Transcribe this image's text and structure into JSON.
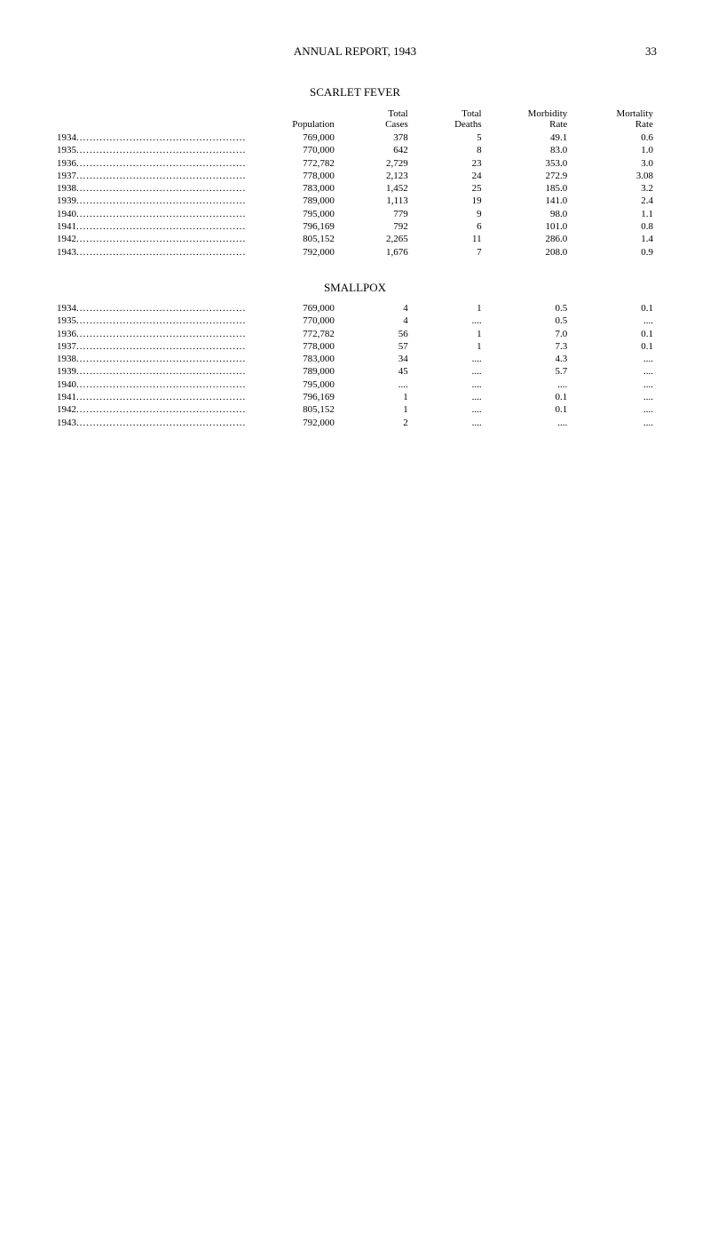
{
  "header": {
    "title": "ANNUAL REPORT, 1943",
    "page_number": "33"
  },
  "tables": [
    {
      "title": "SCARLET FEVER",
      "columns": [
        "",
        "Population",
        "Total Cases",
        "Total Deaths",
        "Morbidity Rate",
        "Mortality Rate"
      ],
      "rows": [
        {
          "year": "1934",
          "population": "769,000",
          "cases": "378",
          "deaths": "5",
          "morbidity": "49.1",
          "mortality": "0.6"
        },
        {
          "year": "1935",
          "population": "770,000",
          "cases": "642",
          "deaths": "8",
          "morbidity": "83.0",
          "mortality": "1.0"
        },
        {
          "year": "1936",
          "population": "772,782",
          "cases": "2,729",
          "deaths": "23",
          "morbidity": "353.0",
          "mortality": "3.0"
        },
        {
          "year": "1937",
          "population": "778,000",
          "cases": "2,123",
          "deaths": "24",
          "morbidity": "272.9",
          "mortality": "3.08"
        },
        {
          "year": "1938",
          "population": "783,000",
          "cases": "1,452",
          "deaths": "25",
          "morbidity": "185.0",
          "mortality": "3.2"
        },
        {
          "year": "1939",
          "population": "789,000",
          "cases": "1,113",
          "deaths": "19",
          "morbidity": "141.0",
          "mortality": "2.4"
        },
        {
          "year": "1940",
          "population": "795,000",
          "cases": "779",
          "deaths": "9",
          "morbidity": "98.0",
          "mortality": "1.1"
        },
        {
          "year": "1941",
          "population": "796,169",
          "cases": "792",
          "deaths": "6",
          "morbidity": "101.0",
          "mortality": "0.8"
        },
        {
          "year": "1942",
          "population": "805,152",
          "cases": "2,265",
          "deaths": "11",
          "morbidity": "286.0",
          "mortality": "1.4"
        },
        {
          "year": "1943",
          "population": "792,000",
          "cases": "1,676",
          "deaths": "7",
          "morbidity": "208.0",
          "mortality": "0.9"
        }
      ]
    },
    {
      "title": "SMALLPOX",
      "columns": [
        "",
        "Population",
        "Total Cases",
        "Total Deaths",
        "Morbidity Rate",
        "Mortality Rate"
      ],
      "rows": [
        {
          "year": "1934",
          "population": "769,000",
          "cases": "4",
          "deaths": "1",
          "morbidity": "0.5",
          "mortality": "0.1"
        },
        {
          "year": "1935",
          "population": "770,000",
          "cases": "4",
          "deaths": "....",
          "morbidity": "0.5",
          "mortality": "...."
        },
        {
          "year": "1936",
          "population": "772,782",
          "cases": "56",
          "deaths": "1",
          "morbidity": "7.0",
          "mortality": "0.1"
        },
        {
          "year": "1937",
          "population": "778,000",
          "cases": "57",
          "deaths": "1",
          "morbidity": "7.3",
          "mortality": "0.1"
        },
        {
          "year": "1938",
          "population": "783,000",
          "cases": "34",
          "deaths": "....",
          "morbidity": "4.3",
          "mortality": "...."
        },
        {
          "year": "1939",
          "population": "789,000",
          "cases": "45",
          "deaths": "....",
          "morbidity": "5.7",
          "mortality": "...."
        },
        {
          "year": "1940",
          "population": "795,000",
          "cases": "....",
          "deaths": "....",
          "morbidity": "....",
          "mortality": "...."
        },
        {
          "year": "1941",
          "population": "796,169",
          "cases": "1",
          "deaths": "....",
          "morbidity": "0.1",
          "mortality": "...."
        },
        {
          "year": "1942",
          "population": "805,152",
          "cases": "1",
          "deaths": "....",
          "morbidity": "0.1",
          "mortality": "...."
        },
        {
          "year": "1943",
          "population": "792,000",
          "cases": "2",
          "deaths": "....",
          "morbidity": "....",
          "mortality": "...."
        }
      ]
    }
  ]
}
